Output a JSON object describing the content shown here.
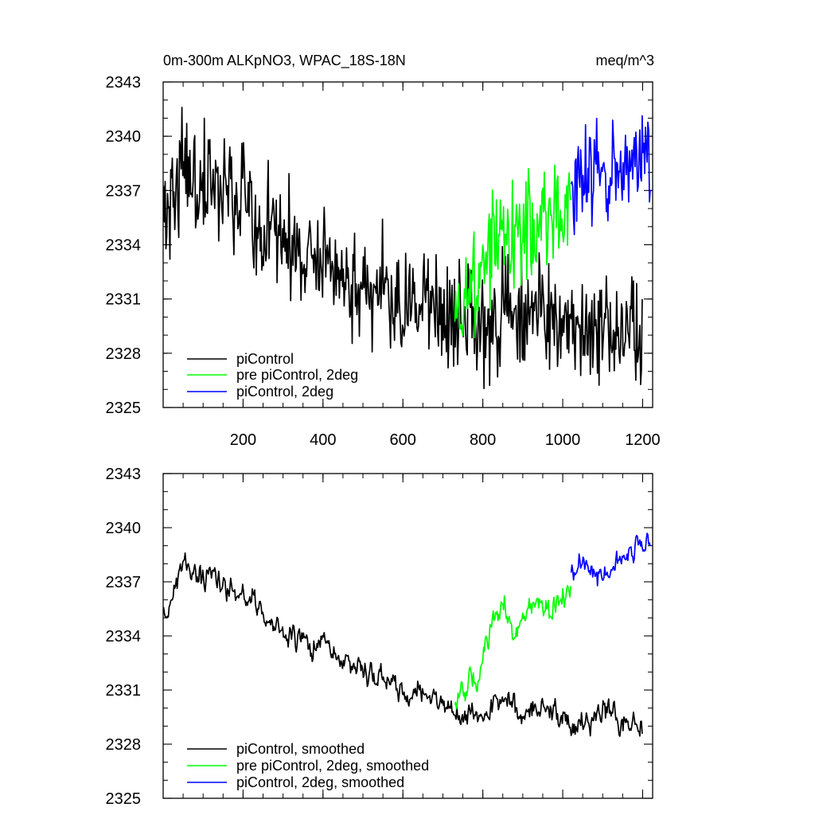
{
  "chart_data": [
    {
      "type": "line",
      "title": "0m-300m ALKpNO3, WPAC_18S-18N",
      "units": "meq/m^3",
      "xlim": [
        0,
        1225
      ],
      "ylim": [
        2325,
        2343
      ],
      "yticks": [
        2325,
        2328,
        2331,
        2334,
        2337,
        2340,
        2343
      ],
      "xticks": [
        200,
        400,
        600,
        800,
        1000,
        1200
      ],
      "show_x_tick_labels": true,
      "legend_position": "bottom-left",
      "series": [
        {
          "name": "piControl",
          "color": "#000000",
          "x": [
            1,
            50,
            100,
            150,
            200,
            250,
            300,
            350,
            400,
            450,
            500,
            550,
            600,
            650,
            700,
            750,
            800,
            850,
            900,
            950,
            1000,
            1050,
            1100,
            1150,
            1200
          ],
          "y": [
            2335,
            2338,
            2337.3,
            2337,
            2336.5,
            2335.3,
            2334.3,
            2333.5,
            2333.7,
            2332.2,
            2331.8,
            2331.8,
            2330.6,
            2330.9,
            2330.2,
            2329.8,
            2329.3,
            2330.6,
            2329.6,
            2330.4,
            2329.3,
            2329.1,
            2329.9,
            2329.2,
            2329.4
          ],
          "amplitude": 1.5
        },
        {
          "name": "pre piControl, 2deg",
          "color": "#00ff00",
          "x": [
            730,
            760,
            790,
            820,
            850,
            880,
            910,
            940,
            970,
            1000,
            1020
          ],
          "y": [
            2330.5,
            2331.2,
            2331.8,
            2334.8,
            2335.8,
            2333.8,
            2335.5,
            2335.8,
            2335.7,
            2336.2,
            2336.3
          ],
          "amplitude": 1.5
        },
        {
          "name": "piControl, 2deg",
          "color": "#0000ff",
          "x": [
            1021,
            1050,
            1100,
            1150,
            1200,
            1220
          ],
          "y": [
            2337.2,
            2338.3,
            2337.2,
            2338.3,
            2339.2,
            2339
          ],
          "amplitude": 1.3
        }
      ]
    },
    {
      "type": "line",
      "title": "",
      "units": "",
      "xlim": [
        0,
        1225
      ],
      "ylim": [
        2325,
        2343
      ],
      "yticks": [
        2325,
        2328,
        2331,
        2334,
        2337,
        2340,
        2343
      ],
      "xticks": [
        200,
        400,
        600,
        800,
        1000,
        1200
      ],
      "show_x_tick_labels": false,
      "legend_position": "bottom-left",
      "series": [
        {
          "name": "piControl, smoothed",
          "color": "#000000",
          "x": [
            1,
            50,
            100,
            150,
            200,
            250,
            300,
            350,
            400,
            450,
            500,
            550,
            600,
            650,
            700,
            750,
            800,
            850,
            900,
            950,
            1000,
            1050,
            1100,
            1150,
            1200
          ],
          "y": [
            2335,
            2338,
            2337.3,
            2337,
            2336.5,
            2335.3,
            2334.3,
            2333.5,
            2333.7,
            2332.2,
            2331.8,
            2331.8,
            2330.6,
            2330.9,
            2330.2,
            2329.8,
            2329.3,
            2330.6,
            2329.6,
            2330.4,
            2329.3,
            2329.1,
            2329.9,
            2329.2,
            2329.4
          ],
          "amplitude": 0.7
        },
        {
          "name": "pre piControl, 2deg, smoothed",
          "color": "#00ff00",
          "x": [
            730,
            760,
            790,
            820,
            850,
            880,
            910,
            940,
            970,
            1000,
            1020
          ],
          "y": [
            2330.5,
            2331.2,
            2331.8,
            2334.8,
            2335.8,
            2333.8,
            2335.5,
            2335.8,
            2335.7,
            2336.2,
            2336.3
          ],
          "amplitude": 0.7
        },
        {
          "name": "piControl, 2deg, smoothed",
          "color": "#0000ff",
          "x": [
            1021,
            1050,
            1100,
            1150,
            1200,
            1220
          ],
          "y": [
            2337.2,
            2338.3,
            2337.2,
            2338.3,
            2339.2,
            2339
          ],
          "amplitude": 0.6
        }
      ]
    }
  ]
}
